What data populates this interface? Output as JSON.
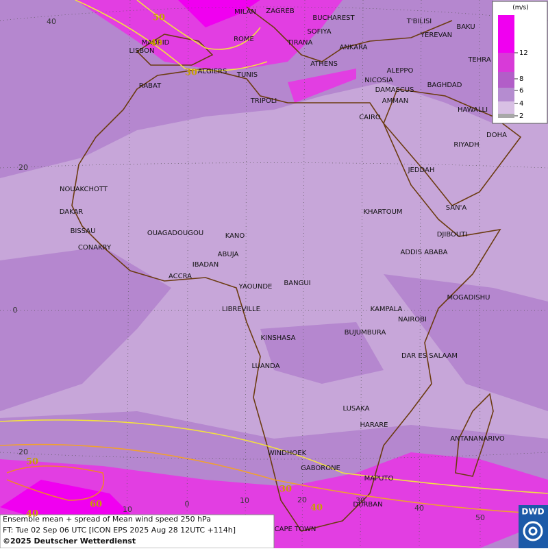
{
  "legend": {
    "unit": "(m/s)",
    "ticks": [
      2,
      4,
      6,
      8,
      12
    ]
  },
  "cities": [
    "MILAN",
    "ZAGREB",
    "BUCHAREST",
    "SOFIYA",
    "MADRID",
    "ROME",
    "TIRANA",
    "LISBON",
    "ANKARA",
    "T'BILISI",
    "YEREVAN",
    "BAKU",
    "TEHRA",
    "ALGIERS",
    "TUNIS",
    "ATHENS",
    "ALEPPO",
    "NICOSIA",
    "BAGHDAD",
    "RABAT",
    "DAMASCUS",
    "TRIPOLI",
    "AMMAN",
    "HAWALLI",
    "CAIRO",
    "DOHA",
    "RIYADH",
    "JEDDAH",
    "NOUAKCHOTT",
    "SAN'A",
    "KHARTOUM",
    "DAKAR",
    "BISSAU",
    "DJIBOUTI",
    "OUAGADOUGOU",
    "KANO",
    "CONAKRY",
    "ADDIS ABABA",
    "ABUJA",
    "IBADAN",
    "ACCRA",
    "BANGUI",
    "YAOUNDE",
    "MOGADISHU",
    "LIBREVILLE",
    "KAMPALA",
    "NAIROBI",
    "BUJUMBURA",
    "KINSHASA",
    "DAR ES SALAAM",
    "LUANDA",
    "LUSAKA",
    "HARARE",
    "ANTANANARIVO",
    "WINDHOEK",
    "GABORONE",
    "MAPUTO",
    "DURBAN",
    "CAPE TOWN"
  ],
  "grid_labels": {
    "lat": [
      40,
      20,
      0,
      20
    ],
    "lon": [
      10,
      0,
      10,
      20,
      30,
      40,
      50
    ]
  },
  "contour_labels": [
    50,
    40,
    30,
    50,
    30,
    40,
    60,
    40
  ],
  "footer": {
    "line1": "Ensemble mean + spread of Mean wind speed 250 hPa",
    "line2": "FT: Tue 02 Sep 06 UTC [ICON EPS 2025 Aug 28 12UTC +114h]",
    "line3": "©2025 Deutscher Wetterdienst"
  },
  "logo": "DWD"
}
